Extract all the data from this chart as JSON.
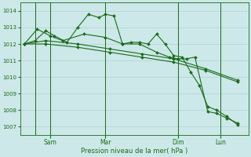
{
  "bg_color": "#cce8e8",
  "line_color": "#1a6b1a",
  "grid_color": "#aacccc",
  "xlabel": "Pression niveau de la mer( hPa )",
  "xlabel_color": "#1a6b1a",
  "tick_color": "#1a6b1a",
  "ylim": [
    1006.5,
    1014.5
  ],
  "yticks": [
    1007,
    1008,
    1009,
    1010,
    1011,
    1012,
    1013,
    1014
  ],
  "day_positions": [
    0.12,
    0.38,
    0.72,
    0.92
  ],
  "day_labels": [
    "Sam",
    "Mar",
    "Dim",
    "Lun"
  ],
  "line1_x": [
    0,
    0.05,
    0.1,
    0.14,
    0.2,
    0.25,
    0.3,
    0.35,
    0.38,
    0.42,
    0.46,
    0.5,
    0.54,
    0.58,
    0.62,
    0.66,
    0.7,
    0.74,
    0.78,
    0.82,
    0.86,
    0.9,
    0.95,
    1.0
  ],
  "line1_y": [
    1012.0,
    1012.2,
    1012.8,
    1012.5,
    1012.1,
    1013.0,
    1013.8,
    1013.6,
    1013.8,
    1013.7,
    1012.0,
    1012.1,
    1012.1,
    1012.0,
    1012.6,
    1012.0,
    1011.3,
    1011.2,
    1010.3,
    1009.5,
    1008.2,
    1008.0,
    1007.6,
    1007.1
  ],
  "line2_x": [
    0,
    0.1,
    0.25,
    0.4,
    0.55,
    0.7,
    0.85,
    1.0
  ],
  "line2_y": [
    1012.0,
    1012.2,
    1012.0,
    1011.7,
    1011.4,
    1011.1,
    1010.5,
    1009.8
  ],
  "line3_x": [
    0,
    0.1,
    0.25,
    0.4,
    0.55,
    0.7,
    0.85,
    1.0
  ],
  "line3_y": [
    1012.0,
    1012.0,
    1011.8,
    1011.5,
    1011.2,
    1010.9,
    1010.4,
    1009.7
  ],
  "line4_x": [
    0,
    0.06,
    0.12,
    0.18,
    0.28,
    0.38,
    0.46,
    0.54,
    0.62,
    0.68,
    0.72,
    0.76,
    0.8,
    0.86,
    0.9,
    0.95,
    1.0
  ],
  "line4_y": [
    1012.0,
    1012.9,
    1012.5,
    1012.2,
    1012.6,
    1012.4,
    1012.0,
    1012.0,
    1011.5,
    1011.2,
    1011.1,
    1011.1,
    1011.2,
    1007.9,
    1007.8,
    1007.5,
    1007.2
  ],
  "vline_x": 0.05,
  "n_xgrid": 14,
  "n_ygrid": 8
}
